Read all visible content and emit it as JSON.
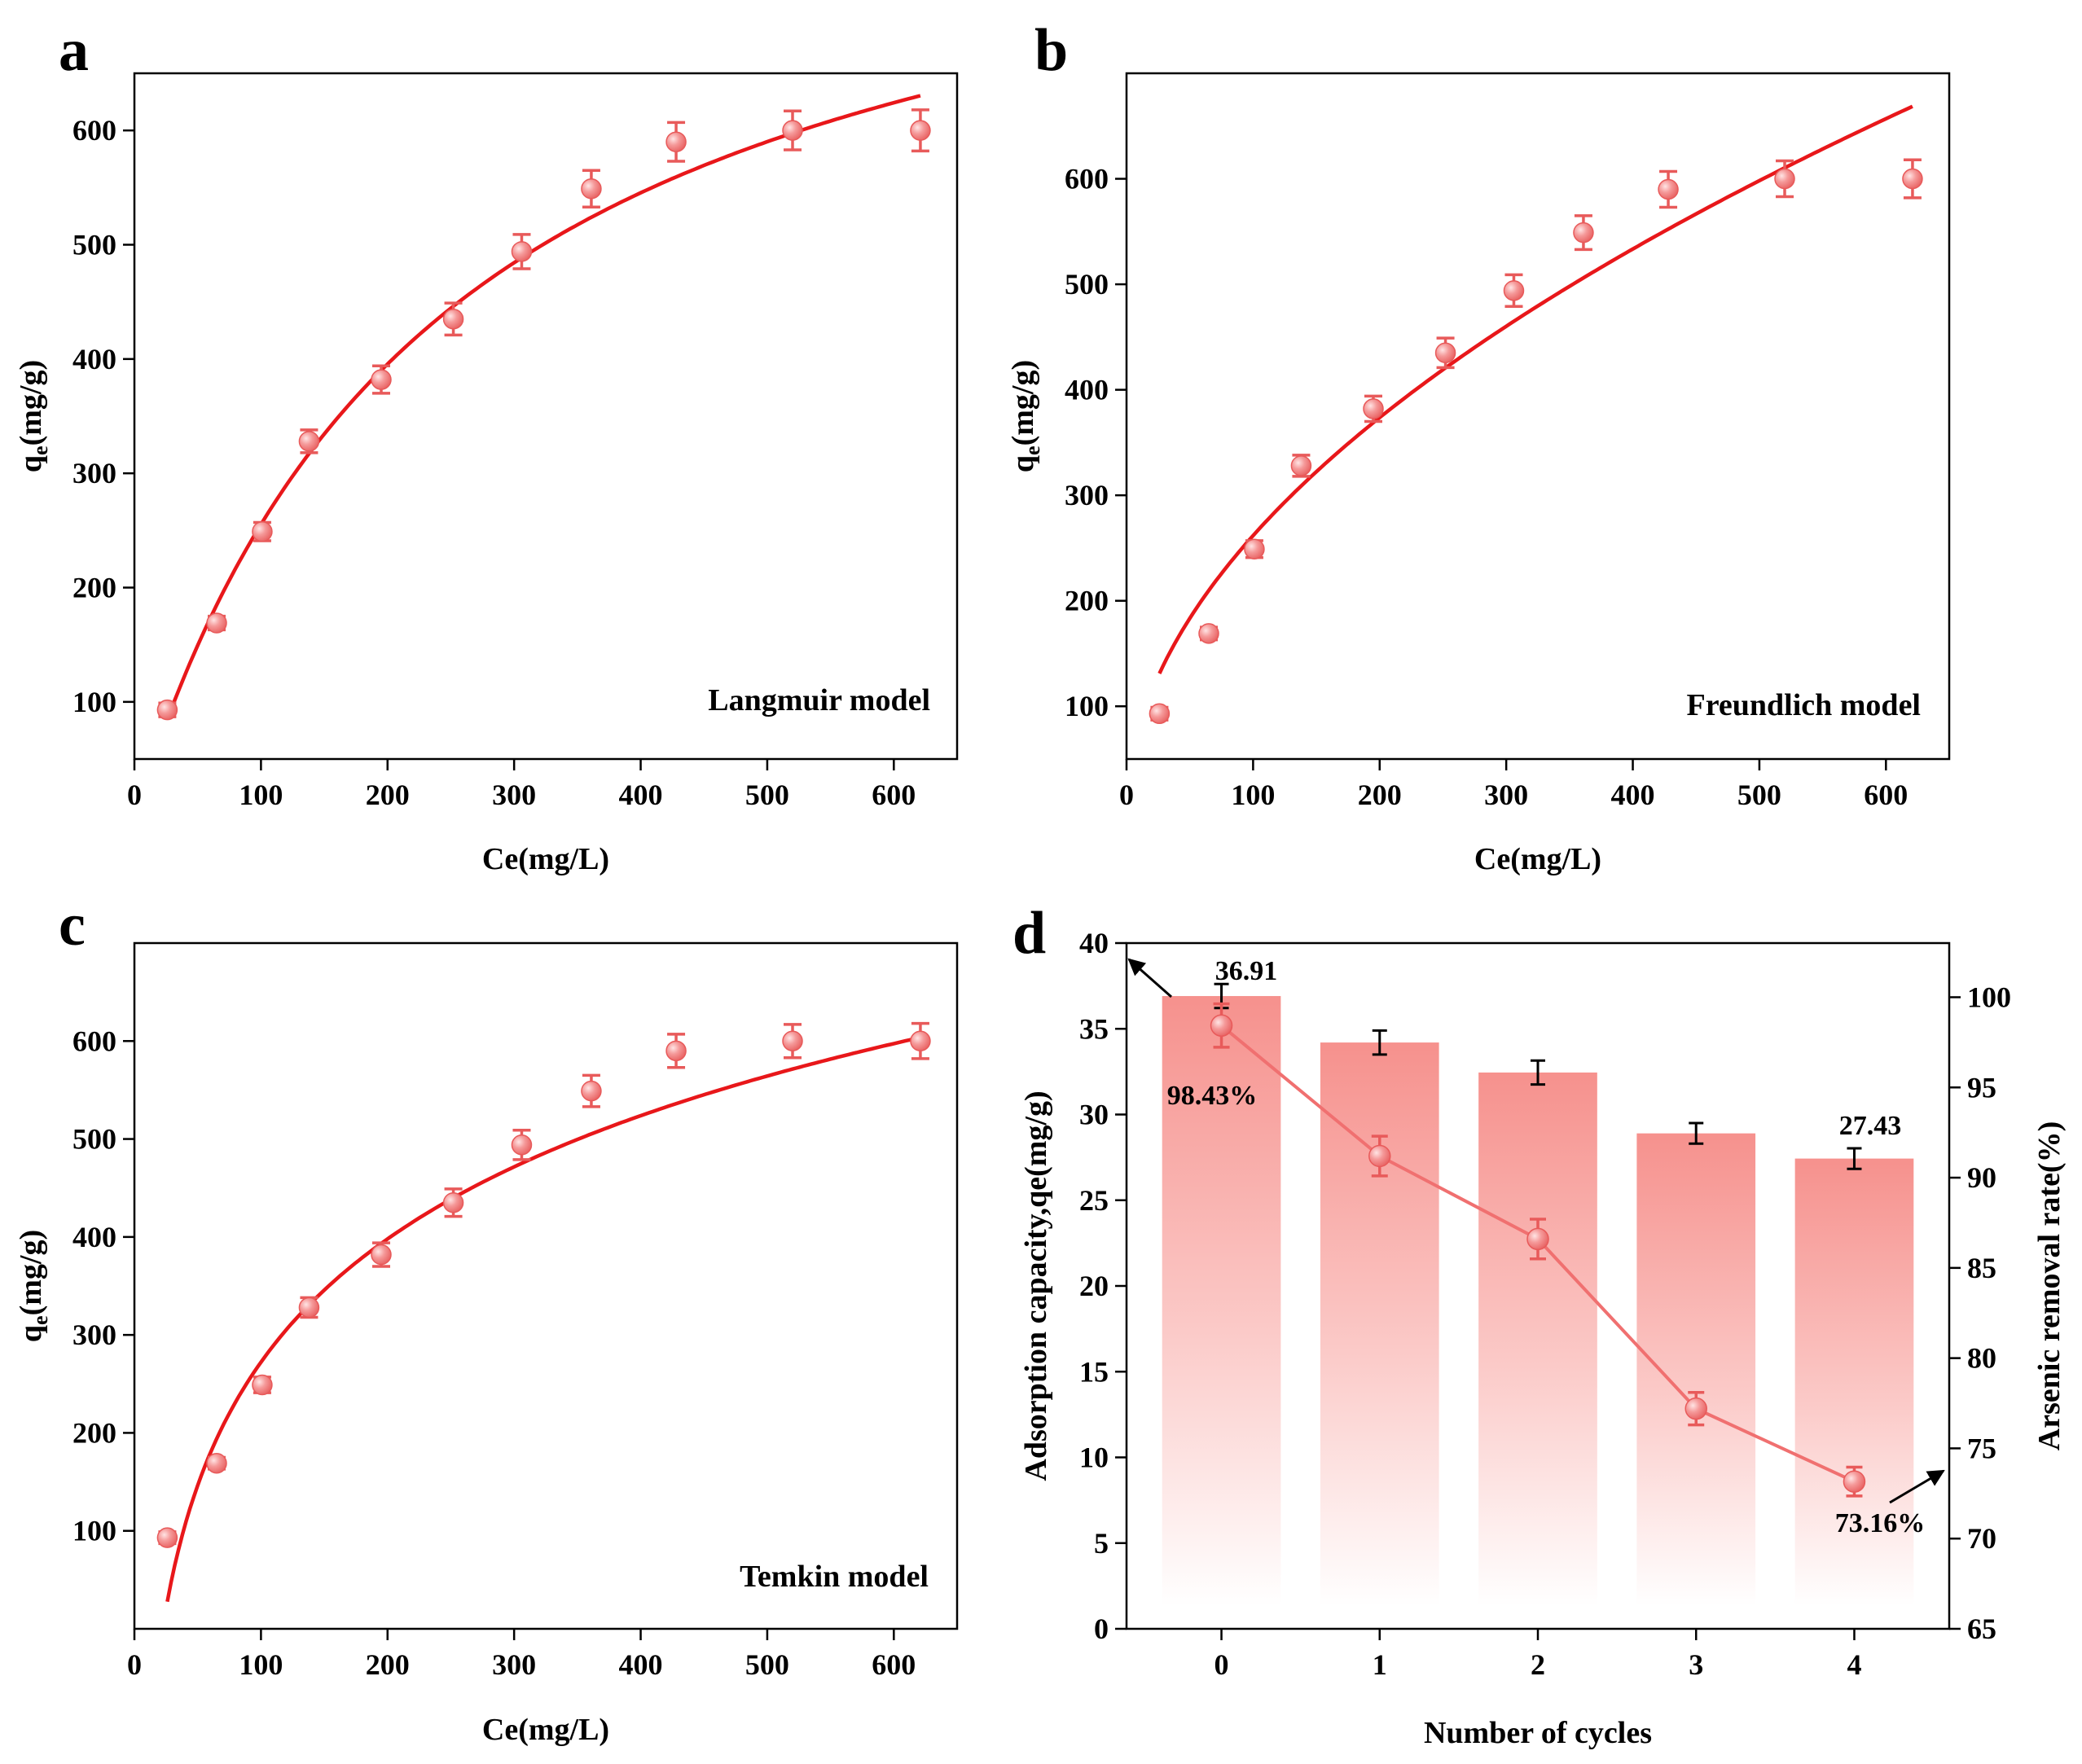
{
  "figure": {
    "colors": {
      "marker": "#f08080",
      "marker_edge": "#e85a5a",
      "fit_line": "#e8171a",
      "bar_top": "#f79a96",
      "removal_line": "#f07070",
      "axis": "#000000"
    }
  },
  "chart_data": [
    {
      "id": "a",
      "panel_letter": "a",
      "type": "scatter",
      "model_label": "Langmuir model",
      "xlabel": "Ce(mg/L)",
      "ylabel": "q",
      "ylabel_sub": "e",
      "ylabel_rest": "(mg/g)",
      "xlim": [
        0,
        650
      ],
      "ylim": [
        50,
        650
      ],
      "xticks": [
        0,
        100,
        200,
        300,
        400,
        500,
        600
      ],
      "yticks": [
        100,
        200,
        300,
        400,
        500,
        600
      ],
      "points": [
        {
          "x": 26,
          "y": 93,
          "err": 6
        },
        {
          "x": 65,
          "y": 169,
          "err": 6
        },
        {
          "x": 101,
          "y": 249,
          "err": 8
        },
        {
          "x": 138,
          "y": 328,
          "err": 10
        },
        {
          "x": 195,
          "y": 382,
          "err": 12
        },
        {
          "x": 252,
          "y": 435,
          "err": 14
        },
        {
          "x": 306,
          "y": 494,
          "err": 15
        },
        {
          "x": 361,
          "y": 549,
          "err": 16
        },
        {
          "x": 428,
          "y": 590,
          "err": 17
        },
        {
          "x": 520,
          "y": 600,
          "err": 17
        },
        {
          "x": 621,
          "y": 600,
          "err": 18
        }
      ],
      "fit": {
        "model": "langmuir",
        "qm": 878,
        "K": 0.0041,
        "x_range": [
          26,
          621
        ]
      }
    },
    {
      "id": "b",
      "panel_letter": "b",
      "type": "scatter",
      "model_label": "Freundlich model",
      "xlabel": "Ce(mg/L)",
      "ylabel": "q",
      "ylabel_sub": "e",
      "ylabel_rest": "(mg/g)",
      "xlim": [
        0,
        650
      ],
      "ylim": [
        50,
        700
      ],
      "xticks": [
        0,
        100,
        200,
        300,
        400,
        500,
        600
      ],
      "yticks": [
        100,
        200,
        300,
        400,
        500,
        600
      ],
      "points": [
        {
          "x": 26,
          "y": 93,
          "err": 6
        },
        {
          "x": 65,
          "y": 169,
          "err": 6
        },
        {
          "x": 101,
          "y": 249,
          "err": 8
        },
        {
          "x": 138,
          "y": 328,
          "err": 10
        },
        {
          "x": 195,
          "y": 382,
          "err": 12
        },
        {
          "x": 252,
          "y": 435,
          "err": 14
        },
        {
          "x": 306,
          "y": 494,
          "err": 15
        },
        {
          "x": 361,
          "y": 549,
          "err": 16
        },
        {
          "x": 428,
          "y": 590,
          "err": 17
        },
        {
          "x": 520,
          "y": 600,
          "err": 17
        },
        {
          "x": 621,
          "y": 600,
          "err": 18
        }
      ],
      "fit": {
        "model": "freundlich",
        "Kf": 24.6,
        "n_inv": 0.5135,
        "x_range": [
          26,
          621
        ]
      }
    },
    {
      "id": "c",
      "panel_letter": "c",
      "type": "scatter",
      "model_label": "Temkin model",
      "xlabel": "Ce(mg/L)",
      "ylabel": "q",
      "ylabel_sub": "e",
      "ylabel_rest": "(mg/g)",
      "xlim": [
        0,
        650
      ],
      "ylim": [
        0,
        700
      ],
      "xticks": [
        0,
        100,
        200,
        300,
        400,
        500,
        600
      ],
      "yticks": [
        100,
        200,
        300,
        400,
        500,
        600
      ],
      "points": [
        {
          "x": 26,
          "y": 93,
          "err": 6
        },
        {
          "x": 65,
          "y": 169,
          "err": 6
        },
        {
          "x": 101,
          "y": 249,
          "err": 8
        },
        {
          "x": 138,
          "y": 328,
          "err": 10
        },
        {
          "x": 195,
          "y": 382,
          "err": 12
        },
        {
          "x": 252,
          "y": 435,
          "err": 14
        },
        {
          "x": 306,
          "y": 494,
          "err": 15
        },
        {
          "x": 361,
          "y": 549,
          "err": 16
        },
        {
          "x": 428,
          "y": 590,
          "err": 17
        },
        {
          "x": 520,
          "y": 600,
          "err": 17
        },
        {
          "x": 621,
          "y": 600,
          "err": 18
        }
      ],
      "fit": {
        "model": "temkin",
        "B": 181.5,
        "KT": 0.0448,
        "x_range": [
          26,
          621
        ]
      }
    },
    {
      "id": "d",
      "panel_letter": "d",
      "type": "bar",
      "xlabel": "Number of cycles",
      "ylabel": "Adsorption capacity,qe(mg/g)",
      "ylabel_right": "Arsenic removal rate(%)",
      "categories": [
        "0",
        "1",
        "2",
        "3",
        "4"
      ],
      "ylim": [
        0,
        40
      ],
      "yticks": [
        0,
        5,
        10,
        15,
        20,
        25,
        30,
        35,
        40
      ],
      "ylim_right": [
        65,
        103
      ],
      "yticks_right": [
        65,
        70,
        75,
        80,
        85,
        90,
        95,
        100
      ],
      "series": [
        {
          "name": "Adsorption capacity",
          "axis": "left",
          "values": [
            36.91,
            34.2,
            32.45,
            28.9,
            27.43
          ],
          "errors": [
            0.7,
            0.7,
            0.7,
            0.6,
            0.6
          ]
        },
        {
          "name": "Arsenic removal rate",
          "axis": "right",
          "values": [
            98.43,
            91.2,
            86.6,
            77.2,
            73.16
          ],
          "errors": [
            1.2,
            1.1,
            1.1,
            0.9,
            0.8
          ]
        }
      ],
      "annotations": {
        "bar0_value": "36.91",
        "bar4_value": "27.43",
        "rate0": "98.43%",
        "rate4": "73.16%"
      }
    }
  ]
}
